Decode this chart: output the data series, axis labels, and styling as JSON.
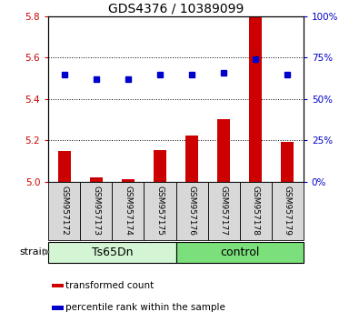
{
  "title": "GDS4376 / 10389099",
  "samples": [
    "GSM957172",
    "GSM957173",
    "GSM957174",
    "GSM957175",
    "GSM957176",
    "GSM957177",
    "GSM957178",
    "GSM957179"
  ],
  "bar_values": [
    5.15,
    5.02,
    5.015,
    5.155,
    5.225,
    5.305,
    5.8,
    5.195
  ],
  "dot_percentiles": [
    65,
    62,
    62,
    65,
    65,
    66,
    74,
    65
  ],
  "ylim_left": [
    5.0,
    5.8
  ],
  "ylim_right": [
    0,
    100
  ],
  "yticks_left": [
    5.0,
    5.2,
    5.4,
    5.6,
    5.8
  ],
  "yticks_right": [
    0,
    25,
    50,
    75,
    100
  ],
  "groups": [
    {
      "label": "Ts65Dn",
      "start": 0,
      "end": 4,
      "color": "#d4f5d4"
    },
    {
      "label": "control",
      "start": 4,
      "end": 8,
      "color": "#7be07b"
    }
  ],
  "bar_color": "#cc0000",
  "dot_color": "#0000cc",
  "strain_label": "strain",
  "legend_bar_label": "transformed count",
  "legend_dot_label": "percentile rank within the sample",
  "sample_bg_color": "#d8d8d8",
  "title_fontsize": 10,
  "tick_fontsize": 7.5,
  "sample_fontsize": 6.5,
  "group_fontsize": 9,
  "legend_fontsize": 7.5
}
